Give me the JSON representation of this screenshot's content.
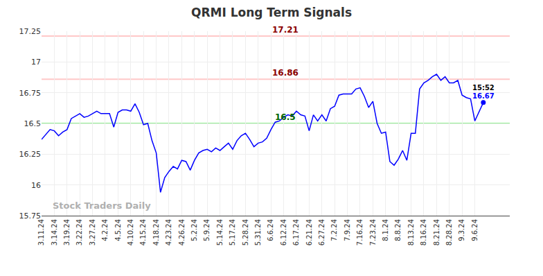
{
  "chart_data": {
    "type": "line",
    "title": "QRMI Long Term Signals",
    "watermark": "Stock Traders Daily",
    "color": "#0000ff",
    "grid": true,
    "categories": [
      "3.11.24",
      null,
      null,
      "3.14.24",
      null,
      null,
      "3.19.24",
      null,
      null,
      "3.22.24",
      null,
      null,
      "3.27.24",
      null,
      null,
      "4.2.24",
      null,
      null,
      "4.5.24",
      null,
      null,
      "4.10.24",
      null,
      null,
      "4.15.24",
      null,
      null,
      "4.18.24",
      null,
      null,
      "4.23.24",
      null,
      null,
      "4.26.24",
      null,
      null,
      "5.2.24",
      null,
      null,
      "5.9.24",
      null,
      null,
      "5.14.24",
      null,
      null,
      "5.17.24",
      null,
      null,
      "5.28.24",
      null,
      null,
      "5.31.24",
      null,
      null,
      "6.6.24",
      null,
      null,
      "6.12.24",
      null,
      null,
      "6.17.24",
      null,
      null,
      "6.21.24",
      null,
      null,
      "6.27.24",
      null,
      null,
      "7.2.24",
      null,
      null,
      "7.9.24",
      null,
      null,
      "7.16.24",
      null,
      null,
      "7.23.24",
      null,
      null,
      "8.1.24",
      null,
      null,
      "8.8.24",
      null,
      null,
      "8.13.24",
      null,
      null,
      "8.16.24",
      null,
      null,
      "8.21.24",
      null,
      null,
      "8.28.24",
      null,
      null,
      "9.3.24",
      null,
      null,
      "9.6.24",
      null,
      null
    ],
    "values": [
      16.37,
      16.41,
      16.45,
      16.44,
      16.4,
      16.43,
      16.45,
      16.54,
      16.56,
      16.58,
      16.55,
      16.56,
      16.58,
      16.6,
      16.58,
      16.58,
      16.58,
      16.47,
      16.59,
      16.61,
      16.61,
      16.6,
      16.66,
      16.59,
      16.49,
      16.5,
      16.36,
      16.26,
      15.94,
      16.06,
      16.11,
      16.15,
      16.13,
      16.2,
      16.19,
      16.12,
      16.2,
      16.26,
      16.28,
      16.29,
      16.27,
      16.3,
      16.28,
      16.31,
      16.34,
      16.29,
      16.36,
      16.4,
      16.42,
      16.37,
      16.31,
      16.34,
      16.35,
      16.38,
      16.45,
      16.51,
      16.52,
      16.55,
      16.57,
      16.56,
      16.6,
      16.57,
      16.56,
      16.44,
      16.57,
      16.52,
      16.57,
      16.52,
      16.62,
      16.64,
      16.73,
      16.74,
      16.74,
      16.74,
      16.78,
      16.79,
      16.72,
      16.63,
      16.68,
      16.5,
      16.42,
      16.43,
      16.19,
      16.16,
      16.21,
      16.28,
      16.2,
      16.42,
      16.42,
      16.78,
      16.83,
      16.85,
      16.88,
      16.9,
      16.85,
      16.88,
      16.83,
      16.83,
      16.85,
      16.73,
      16.71,
      16.7,
      16.52,
      16.6,
      16.67
    ],
    "ylim": [
      15.75,
      17.25
    ],
    "yticks": [
      15.75,
      16,
      16.25,
      16.5,
      16.75,
      17,
      17.25
    ],
    "levels": [
      {
        "value": 17.21,
        "color": "#ffc8c8",
        "text_color": "#8b0000"
      },
      {
        "value": 16.86,
        "color": "#ffc8c8",
        "text_color": "#8b0000"
      },
      {
        "value": 16.5,
        "color": "#90ee90",
        "text_color": "#006400"
      }
    ],
    "last_time": "15:52"
  }
}
